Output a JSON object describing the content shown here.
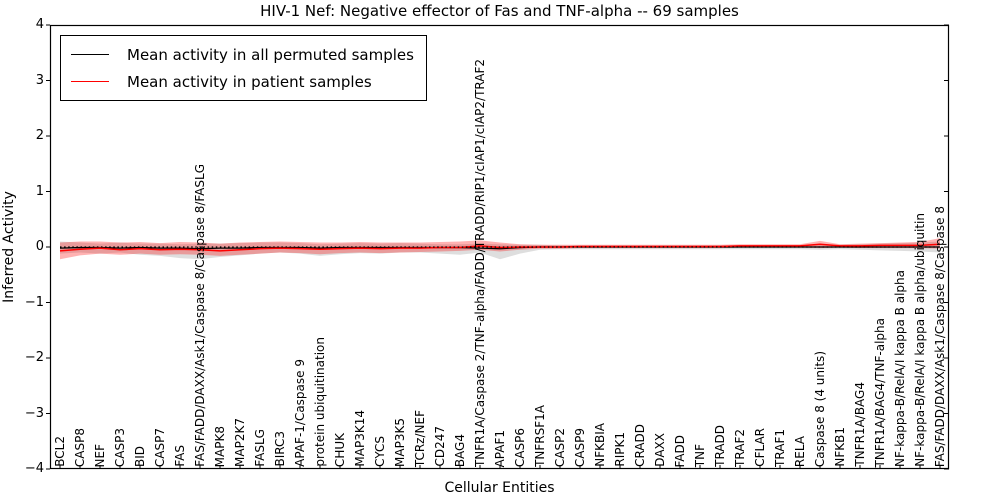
{
  "title": "HIV-1 Nef: Negative effector of Fas and TNF-alpha -- 69 samples",
  "legend": {
    "entries": [
      {
        "label": "Mean activity in all permuted samples",
        "color": "#000000"
      },
      {
        "label": "Mean activity in patient samples",
        "color": "#ff0000"
      }
    ],
    "position": "upper left"
  },
  "axes": {
    "xlabel": "Cellular Entities",
    "ylabel": "Inferred Activity",
    "yticks": [
      "4",
      "3",
      "2",
      "1",
      "0",
      "−1",
      "−2",
      "−3",
      "−4"
    ],
    "ylim": [
      -4,
      4
    ],
    "grid": false
  },
  "colors": {
    "permuted_line": "#000000",
    "patient_line": "#ff0000",
    "permuted_band": "rgba(0,0,0,0.13)",
    "patient_band": "rgba(255,0,0,0.30)",
    "zero_line": "#000000"
  },
  "chart_data": {
    "type": "line",
    "title": "HIV-1 Nef: Negative effector of Fas and TNF-alpha -- 69 samples",
    "xlabel": "Cellular Entities",
    "ylabel": "Inferred Activity",
    "ylim": [
      -4,
      4
    ],
    "legend_position": "upper left",
    "grid": false,
    "zero_reference_line": 0,
    "categories": [
      "BCL2",
      "CASP8",
      "NEF",
      "CASP3",
      "BID",
      "CASP7",
      "FAS",
      "FAS/FADD/DAXX/Ask1/Caspase 8/Caspase 8/FASLG",
      "MAPK8",
      "MAP2K7",
      "FASLG",
      "BIRC3",
      "APAF-1/Caspase 9",
      "protein ubiquitination",
      "CHUK",
      "MAP3K14",
      "CYCS",
      "MAP3K5",
      "TCRz/NEF",
      "CD247",
      "BAG4",
      "TNFR1A/Caspase 2/TNF-alpha/FADD/TRADD/RIP1/cIAP1/cIAP2/TRAF2",
      "APAF1",
      "CASP6",
      "TNFRSF1A",
      "CASP2",
      "CASP9",
      "NFKBIA",
      "RIPK1",
      "CRADD",
      "DAXX",
      "FADD",
      "TNF",
      "TRADD",
      "TRAF2",
      "CFLAR",
      "TRAF1",
      "RELA",
      "Caspase 8 (4 units)",
      "NFKB1",
      "TNFR1A/BAG4",
      "TNFR1A/BAG4/TNF-alpha",
      "NF-kappa-B/RelA/I kappa B alpha",
      "NF-kappa-B/RelA/I kappa B alpha/ubiquitin",
      "FAS/FADD/DAXX/Ask1/Caspase 8/Caspase 8"
    ],
    "series": [
      {
        "name": "Mean activity in all permuted samples",
        "color": "#000000",
        "values": [
          -0.02,
          -0.01,
          -0.01,
          -0.02,
          -0.01,
          -0.02,
          -0.02,
          -0.03,
          -0.02,
          -0.02,
          -0.01,
          -0.01,
          -0.01,
          -0.02,
          -0.01,
          -0.01,
          -0.01,
          -0.01,
          -0.01,
          -0.01,
          -0.01,
          -0.02,
          -0.03,
          -0.01,
          0.0,
          0.0,
          0.0,
          0.0,
          0.0,
          0.0,
          0.0,
          0.0,
          0.0,
          0.0,
          0.0,
          0.0,
          0.0,
          0.0,
          0.0,
          0.0,
          0.0,
          0.0,
          0.0,
          0.0,
          0.0
        ],
        "band_hi": [
          0.1,
          0.08,
          0.06,
          0.08,
          0.06,
          0.06,
          0.05,
          0.06,
          0.06,
          0.07,
          0.08,
          0.08,
          0.07,
          0.05,
          0.06,
          0.07,
          0.06,
          0.07,
          0.06,
          0.05,
          0.05,
          0.06,
          0.05,
          0.04,
          0.04,
          0.03,
          0.03,
          0.03,
          0.03,
          0.03,
          0.03,
          0.03,
          0.03,
          0.03,
          0.03,
          0.03,
          0.03,
          0.03,
          0.05,
          0.04,
          0.05,
          0.06,
          0.07,
          0.08,
          0.1
        ],
        "band_lo": [
          -0.12,
          -0.1,
          -0.12,
          -0.1,
          -0.14,
          -0.16,
          -0.2,
          -0.22,
          -0.18,
          -0.15,
          -0.12,
          -0.1,
          -0.12,
          -0.16,
          -0.13,
          -0.11,
          -0.12,
          -0.1,
          -0.1,
          -0.12,
          -0.14,
          -0.1,
          -0.22,
          -0.12,
          -0.05,
          -0.04,
          -0.04,
          -0.04,
          -0.04,
          -0.04,
          -0.04,
          -0.04,
          -0.04,
          -0.04,
          -0.04,
          -0.04,
          -0.04,
          -0.04,
          -0.05,
          -0.04,
          -0.05,
          -0.06,
          -0.07,
          -0.08,
          -0.1
        ]
      },
      {
        "name": "Mean activity in patient samples",
        "color": "#ff0000",
        "values": [
          -0.07,
          -0.04,
          -0.02,
          -0.05,
          -0.03,
          -0.05,
          -0.04,
          -0.05,
          -0.07,
          -0.05,
          -0.03,
          -0.02,
          -0.03,
          -0.04,
          -0.03,
          -0.02,
          -0.03,
          -0.02,
          -0.02,
          -0.01,
          -0.01,
          0.02,
          -0.01,
          0.0,
          0.0,
          0.0,
          0.01,
          0.01,
          0.01,
          0.01,
          0.01,
          0.01,
          0.01,
          0.01,
          0.02,
          0.02,
          0.02,
          0.02,
          0.05,
          0.02,
          0.02,
          0.03,
          0.03,
          0.03,
          0.05
        ],
        "band_hi": [
          0.08,
          0.1,
          0.1,
          0.08,
          0.09,
          0.07,
          0.09,
          0.08,
          0.06,
          0.08,
          0.09,
          0.1,
          0.09,
          0.08,
          0.08,
          0.09,
          0.08,
          0.08,
          0.08,
          0.09,
          0.1,
          0.12,
          0.08,
          0.05,
          0.04,
          0.04,
          0.04,
          0.04,
          0.04,
          0.04,
          0.04,
          0.04,
          0.04,
          0.04,
          0.05,
          0.05,
          0.05,
          0.05,
          0.11,
          0.05,
          0.06,
          0.07,
          0.08,
          0.09,
          0.16
        ],
        "band_lo": [
          -0.22,
          -0.15,
          -0.12,
          -0.14,
          -0.12,
          -0.14,
          -0.13,
          -0.14,
          -0.16,
          -0.14,
          -0.12,
          -0.1,
          -0.11,
          -0.13,
          -0.11,
          -0.1,
          -0.11,
          -0.1,
          -0.09,
          -0.08,
          -0.07,
          -0.05,
          -0.08,
          -0.05,
          -0.03,
          -0.03,
          -0.02,
          -0.02,
          -0.02,
          -0.02,
          -0.02,
          -0.02,
          -0.02,
          -0.02,
          -0.01,
          -0.01,
          -0.01,
          -0.01,
          -0.02,
          -0.01,
          -0.02,
          -0.02,
          -0.02,
          -0.02,
          -0.03
        ]
      }
    ]
  }
}
